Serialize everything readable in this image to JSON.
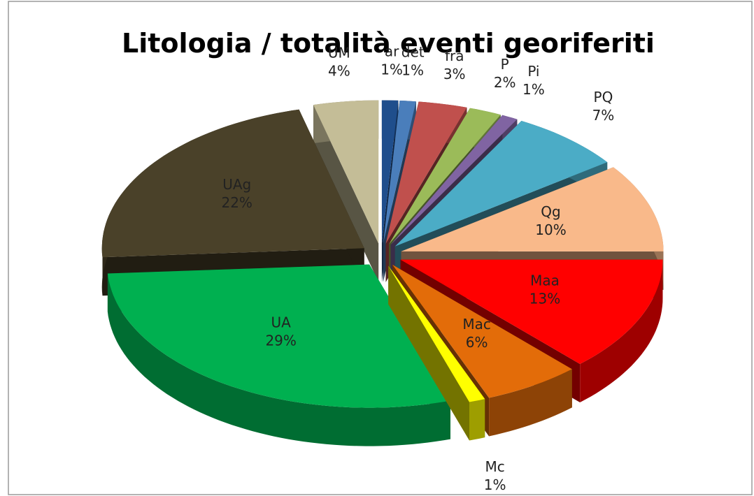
{
  "chart_data": {
    "type": "pie3d",
    "title": "Litologia / totalità eventi georiferiti",
    "categories": [
      "ar",
      "det",
      "fra",
      "P",
      "Pi",
      "PQ",
      "Qg",
      "Maa",
      "Mac",
      "Mc",
      "UA",
      "UAg",
      "UM"
    ],
    "values": [
      1,
      1,
      3,
      2,
      1,
      7,
      10,
      13,
      6,
      1,
      29,
      22,
      4
    ],
    "value_labels": [
      "1%",
      "1%",
      "3%",
      "2%",
      "1%",
      "7%",
      "10%",
      "13%",
      "6%",
      "1%",
      "29%",
      "22%",
      "4%"
    ],
    "colors": [
      "#1f4e8c",
      "#4a7ebb",
      "#c0504d",
      "#9bbb59",
      "#8064a2",
      "#4bacc6",
      "#f9b98a",
      "#ff0000",
      "#e36c09",
      "#ffff00",
      "#00b050",
      "#4a4129",
      "#c4bd97"
    ]
  }
}
